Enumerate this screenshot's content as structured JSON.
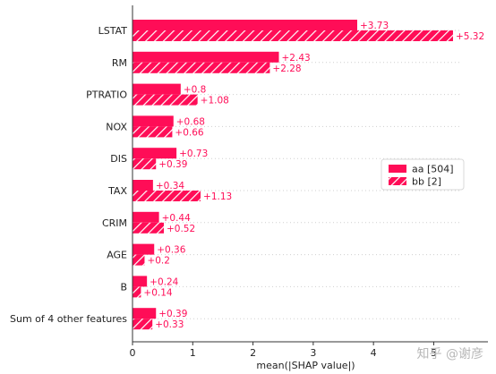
{
  "chart_data": {
    "type": "bar",
    "orientation": "horizontal",
    "categories": [
      "LSTAT",
      "RM",
      "PTRATIO",
      "NOX",
      "DIS",
      "TAX",
      "CRIM",
      "AGE",
      "B",
      "Sum of 4 other features"
    ],
    "series": [
      {
        "name": "aa [504]",
        "values": [
          3.73,
          2.43,
          0.8,
          0.68,
          0.73,
          0.34,
          0.44,
          0.36,
          0.24,
          0.39
        ],
        "value_labels": [
          "+3.73",
          "+2.43",
          "+0.8",
          "+0.68",
          "+0.73",
          "+0.34",
          "+0.44",
          "+0.36",
          "+0.24",
          "+0.39"
        ],
        "color": "#ff0d57",
        "hatched": false
      },
      {
        "name": "bb [2]",
        "values": [
          5.32,
          2.28,
          1.08,
          0.66,
          0.39,
          1.13,
          0.52,
          0.2,
          0.14,
          0.33
        ],
        "value_labels": [
          "+5.32",
          "+2.28",
          "+1.08",
          "+0.66",
          "+0.39",
          "+1.13",
          "+0.52",
          "+0.2",
          "+0.14",
          "+0.33"
        ],
        "color": "#ff0d57",
        "hatched": true
      }
    ],
    "xlabel": "mean(|SHAP value|)",
    "xlim": [
      0,
      5.9
    ],
    "xticks": [
      "0",
      "1",
      "2",
      "3",
      "4",
      "5"
    ],
    "grid": "horizontal dotted row lines",
    "legend": {
      "placement": "right",
      "entries": [
        "aa [504]",
        "bb [2]"
      ]
    },
    "label_color": "#ff0d57",
    "watermark": "知乎 @谢彦"
  }
}
